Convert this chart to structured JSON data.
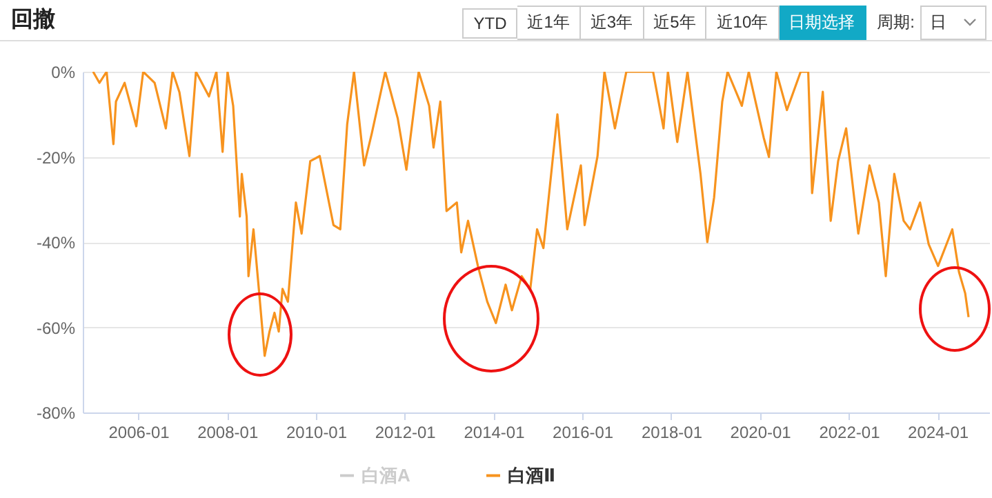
{
  "chart_data": {
    "type": "line",
    "title": "回撤",
    "annotations": [
      "YTD",
      "近1年",
      "近3年",
      "近5年",
      "近10年",
      "日期选择",
      "周期:",
      "日"
    ],
    "x": [
      "2004-12-25",
      "2005-02-15",
      "2005-04-15",
      "2005-06-10",
      "2005-07-01",
      "2005-09-10",
      "2005-12-15",
      "2006-02-10",
      "2006-05-15",
      "2006-08-15",
      "2006-10-10",
      "2006-12-05",
      "2007-02-25",
      "2007-04-20",
      "2007-08-05",
      "2007-10-05",
      "2007-11-25",
      "2008-01-05",
      "2008-02-20",
      "2008-04-15",
      "2008-05-01",
      "2008-06-10",
      "2008-06-25",
      "2008-08-05",
      "2008-09-15",
      "2008-11-05",
      "2008-12-15",
      "2009-01-25",
      "2009-03-01",
      "2009-04-01",
      "2009-05-15",
      "2009-07-20",
      "2009-09-05",
      "2009-11-15",
      "2010-02-01",
      "2010-05-25",
      "2010-07-20",
      "2010-09-15",
      "2010-11-10",
      "2011-02-01",
      "2011-04-05",
      "2011-07-25",
      "2011-11-05",
      "2012-01-15",
      "2012-04-25",
      "2012-07-20",
      "2012-08-25",
      "2012-10-20",
      "2012-12-10",
      "2013-03-05",
      "2013-04-10",
      "2013-06-05",
      "2013-08-25",
      "2013-11-10",
      "2014-01-20",
      "2014-04-10",
      "2014-06-01",
      "2014-08-20",
      "2014-10-30",
      "2014-12-25",
      "2015-02-15",
      "2015-06-10",
      "2015-08-30",
      "2015-12-20",
      "2016-01-20",
      "2016-05-05",
      "2016-07-01",
      "2016-09-25",
      "2016-12-28",
      "2017-08-05",
      "2017-10-30",
      "2017-12-05",
      "2018-02-20",
      "2018-05-15",
      "2018-08-30",
      "2018-10-25",
      "2018-12-20",
      "2019-02-25",
      "2019-04-10",
      "2019-08-05",
      "2019-10-01",
      "2020-02-01",
      "2020-03-15",
      "2020-05-15",
      "2020-08-10",
      "2020-12-01",
      "2021-02-01",
      "2021-03-05",
      "2021-06-01",
      "2021-08-05",
      "2021-10-05",
      "2021-12-10",
      "2022-03-20",
      "2022-06-20",
      "2022-09-05",
      "2022-11-01",
      "2023-01-10",
      "2023-03-28",
      "2023-05-20",
      "2023-08-10",
      "2023-10-20",
      "2024-01-05",
      "2024-05-01",
      "2024-06-25",
      "2024-08-15",
      "2024-09-12"
    ],
    "series": [
      {
        "name": "白酒A",
        "color": "#cccccc",
        "values": [
          null,
          null,
          null,
          null,
          null,
          null,
          null,
          null,
          null,
          null,
          null,
          null,
          null,
          null,
          null,
          null,
          null,
          null,
          null,
          null,
          null,
          null,
          null,
          null,
          null,
          null,
          null,
          null,
          null,
          null,
          null,
          null,
          null,
          null,
          null,
          null,
          null,
          null,
          null,
          null,
          null,
          null,
          null,
          null,
          null,
          null,
          null,
          null,
          null,
          null,
          null,
          null,
          null,
          null,
          null,
          null,
          null,
          null,
          null,
          null,
          null,
          null,
          null,
          null,
          null,
          null,
          null,
          null,
          null,
          null,
          null,
          null,
          null,
          null,
          null,
          null,
          null,
          null,
          null,
          null,
          null,
          null,
          null,
          null,
          null,
          null,
          null,
          null,
          null,
          null,
          null,
          null,
          null,
          null,
          null,
          null,
          null,
          null,
          null,
          null,
          null,
          null,
          null,
          null,
          null,
          null
        ]
      },
      {
        "name": "白酒Ⅱ",
        "color": "#f7931e",
        "values": [
          0,
          -2.6,
          0,
          -17,
          -7,
          -2.6,
          -12.8,
          0,
          -2.6,
          -13.3,
          0,
          -4.8,
          -19.8,
          0,
          -5.8,
          0,
          -18.8,
          0,
          -8,
          -34,
          -24,
          -34,
          -48,
          -37,
          -50,
          -66.7,
          -61,
          -56.6,
          -61,
          -51,
          -54,
          -30.7,
          -38,
          -21,
          -19.8,
          -36,
          -37,
          -12.3,
          0,
          -22,
          -14.5,
          0,
          -11,
          -23,
          0,
          -8,
          -17.8,
          -7,
          -32.7,
          -30.7,
          -42.4,
          -35,
          -45.6,
          -54,
          -59,
          -50,
          -56,
          -48,
          -51,
          -37,
          -41.4,
          -10,
          -37,
          -22,
          -36,
          -19.8,
          0,
          -13.3,
          0,
          0,
          -13.3,
          0,
          -16.5,
          0,
          -24,
          -40,
          -29.5,
          -7,
          0,
          -8,
          0,
          -15.5,
          -20,
          0,
          -9,
          0,
          0,
          -28.5,
          -4.7,
          -35,
          -21,
          -13.3,
          -38,
          -22,
          -30.7,
          -48,
          -24,
          -35,
          -37,
          -30.7,
          -40.5,
          -45.6,
          -37,
          -47,
          -52,
          -57.6
        ]
      }
    ],
    "xlim": [
      "2004-10",
      "2025-03"
    ],
    "xticks": [
      "2006-01",
      "2008-01",
      "2010-01",
      "2012-01",
      "2014-01",
      "2016-01",
      "2018-01",
      "2020-01",
      "2022-01",
      "2024-01"
    ],
    "ylim": [
      -80,
      0
    ],
    "yticks": [
      {
        "value": 0,
        "label": "0%"
      },
      {
        "value": -20,
        "label": "-20%"
      },
      {
        "value": -40,
        "label": "-40%"
      },
      {
        "value": -60,
        "label": "-60%"
      },
      {
        "value": -80,
        "label": "-80%"
      }
    ],
    "grid": "y",
    "legend": "bottom"
  }
}
